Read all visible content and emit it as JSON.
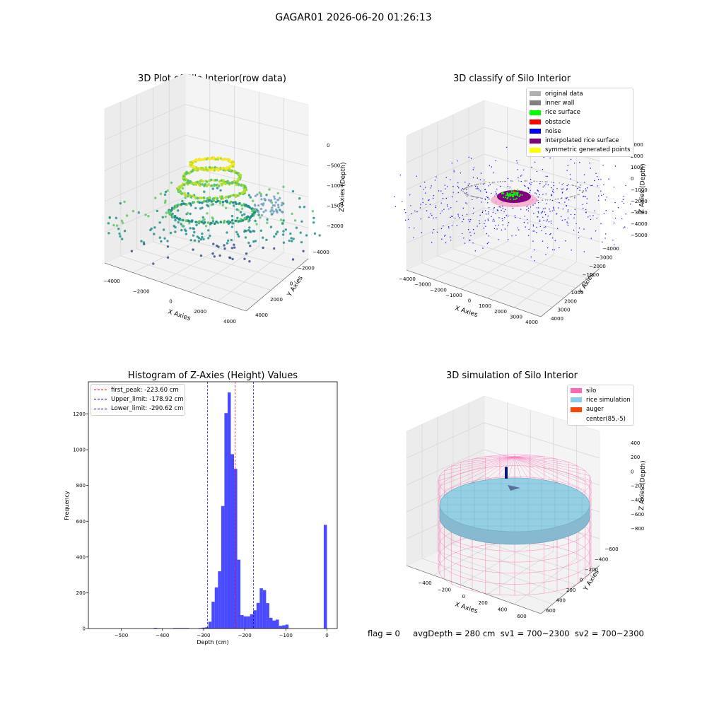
{
  "suptitle": "GAGAR01 2026-06-20 01:26:13",
  "bottom_text": "flag = 0     avgDepth = 280 cm  sv1 = 700~2300  sv2 = 700~2300",
  "chart_data": [
    {
      "type": "scatter",
      "title": "3D Plot of Silo Interior(row data)",
      "xlabel": "X Axies",
      "ylabel": "Y Axies",
      "zlabel": "Z Axies (Depth)",
      "x_ticks": [
        "−4000",
        "−2000",
        "0",
        "2000",
        "4000"
      ],
      "y_ticks": [
        "−4000",
        "−2000",
        "0",
        "2000",
        "4000"
      ],
      "z_ticks": [
        "0",
        "−500",
        "−1000",
        "−1500",
        "−2000"
      ],
      "colormap": "viridis"
    },
    {
      "type": "scatter",
      "title": "3D classify of Silo Interior",
      "xlabel": "X Axies",
      "ylabel": "Y Axies",
      "zlabel": "Z Axies (Depth)",
      "x_ticks": [
        "−4000",
        "−3000",
        "−2000",
        "−1000",
        "0",
        "1000",
        "2000",
        "3000",
        "4000"
      ],
      "y_ticks": [
        "−4000",
        "−3000",
        "−2000",
        "−1000",
        "0",
        "1000",
        "2000",
        "3000",
        "4000"
      ],
      "z_ticks": [
        "3000",
        "2000",
        "1000",
        "0",
        "−1000",
        "−2000",
        "−3000",
        "−4000",
        "−5000"
      ],
      "legend": [
        {
          "label": "original data",
          "color": "#b0b0b0"
        },
        {
          "label": "inner wall",
          "color": "#808080"
        },
        {
          "label": "rice surface",
          "color": "#00ff00"
        },
        {
          "label": "obstacle",
          "color": "#ff0000"
        },
        {
          "label": "noise",
          "color": "#0000ff"
        },
        {
          "label": "interpolated rice surface",
          "color": "#800080"
        },
        {
          "label": "symmetric generated points",
          "color": "#ffff00"
        }
      ],
      "legend_position": "top-right"
    },
    {
      "type": "bar",
      "title": "Histogram of Z-Axies (Height) Values",
      "xlabel": "Depth (cm)",
      "ylabel": "Frequency",
      "xlim": [
        -580,
        25
      ],
      "ylim": [
        0,
        1380
      ],
      "x_ticks": [
        -500,
        -400,
        -300,
        -200,
        -100,
        0
      ],
      "x_tick_labels": [
        "−500",
        "−400",
        "−300",
        "−200",
        "−100",
        "0"
      ],
      "y_ticks": [
        0,
        200,
        400,
        600,
        800,
        1000,
        1200
      ],
      "bin_width": 7.8,
      "bins": [
        {
          "x": -420.9,
          "y": 4
        },
        {
          "x": -413.1,
          "y": 2
        },
        {
          "x": -374.1,
          "y": 3
        },
        {
          "x": -366.3,
          "y": 3
        },
        {
          "x": -358.5,
          "y": 3
        },
        {
          "x": -350.7,
          "y": 3
        },
        {
          "x": -342.9,
          "y": 3
        },
        {
          "x": -311.7,
          "y": 3
        },
        {
          "x": -303.9,
          "y": 5
        },
        {
          "x": -296.1,
          "y": 7
        },
        {
          "x": -288.3,
          "y": 38
        },
        {
          "x": -280.5,
          "y": 150
        },
        {
          "x": -272.7,
          "y": 230
        },
        {
          "x": -264.9,
          "y": 320
        },
        {
          "x": -257.1,
          "y": 685
        },
        {
          "x": -249.3,
          "y": 1205
        },
        {
          "x": -241.5,
          "y": 1320
        },
        {
          "x": -233.7,
          "y": 975
        },
        {
          "x": -225.9,
          "y": 893
        },
        {
          "x": -218.1,
          "y": 385
        },
        {
          "x": -210.3,
          "y": 75
        },
        {
          "x": -202.5,
          "y": 68
        },
        {
          "x": -194.7,
          "y": 68
        },
        {
          "x": -186.9,
          "y": 80
        },
        {
          "x": -179.1,
          "y": 102
        },
        {
          "x": -171.3,
          "y": 143
        },
        {
          "x": -163.5,
          "y": 225
        },
        {
          "x": -155.7,
          "y": 215
        },
        {
          "x": -147.9,
          "y": 142
        },
        {
          "x": -140.1,
          "y": 60
        },
        {
          "x": -132.3,
          "y": 45
        },
        {
          "x": -124.5,
          "y": 50
        },
        {
          "x": -116.7,
          "y": 15
        },
        {
          "x": -108.9,
          "y": 18
        },
        {
          "x": -101.1,
          "y": 22
        },
        {
          "x": -7.8,
          "y": 580
        }
      ],
      "vlines": [
        {
          "label": "first_peak: -223.60 cm",
          "x": -223.6,
          "color": "#ff0000"
        },
        {
          "label": "Upper_limit: -178.92 cm",
          "x": -178.92,
          "color": "#0000cc"
        },
        {
          "label": "Lower_limit: -290.62 cm",
          "x": -290.62,
          "color": "#0000cc"
        }
      ],
      "bar_color": "#4a4aff",
      "legend_position": "top-left"
    },
    {
      "type": "scatter",
      "title": "3D simulation of Silo Interior",
      "xlabel": "X Axies",
      "ylabel": "Y Axies",
      "zlabel": "Z Axies (Depth)",
      "x_ticks": [
        "−400",
        "−200",
        "0",
        "200",
        "400",
        "600"
      ],
      "y_ticks": [
        "−600",
        "−400",
        "−200",
        "0",
        "200",
        "400",
        "600"
      ],
      "z_ticks": [
        "400",
        "200",
        "0",
        "−200",
        "−400",
        "−600",
        "−800"
      ],
      "legend": [
        {
          "label": "silo",
          "color": "#ff69b4"
        },
        {
          "label": "rice simulation",
          "color": "#87ceeb"
        },
        {
          "label": "auger",
          "color": "#ff4500"
        },
        {
          "label": "center(85,-5)",
          "color": "none"
        }
      ],
      "legend_position": "top-right"
    }
  ]
}
